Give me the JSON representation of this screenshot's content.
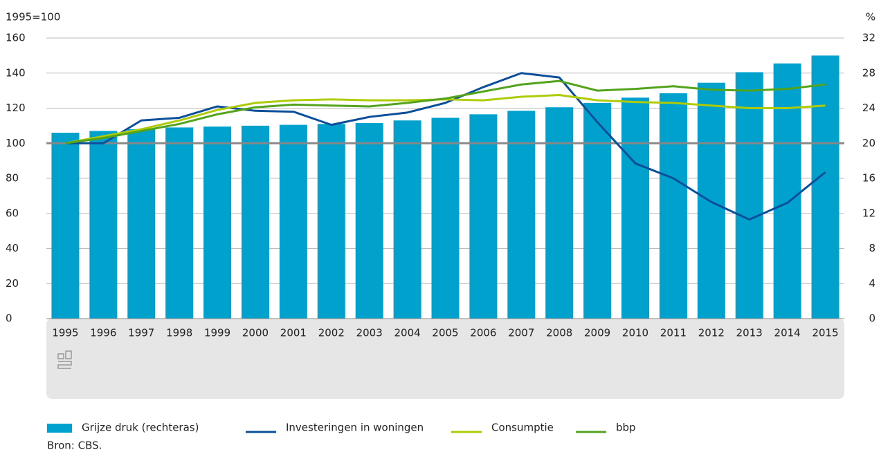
{
  "chart_data": {
    "type": "bar_line",
    "ylabel": "1995=100",
    "y2label": "%",
    "categories": [
      "1995",
      "1996",
      "1997",
      "1998",
      "1999",
      "2000",
      "2001",
      "2002",
      "2003",
      "2004",
      "2005",
      "2006",
      "2007",
      "2008",
      "2009",
      "2010",
      "2011",
      "2012",
      "2013",
      "2014",
      "2015"
    ],
    "series": [
      {
        "name": "Grijze druk (rechteras)",
        "type": "bar",
        "axis": "y2",
        "color": "#00a1cd",
        "values": [
          21.2,
          21.4,
          21.6,
          21.8,
          21.9,
          22.0,
          22.1,
          22.2,
          22.3,
          22.6,
          22.9,
          23.3,
          23.7,
          24.1,
          24.6,
          25.2,
          25.7,
          26.9,
          28.1,
          29.1,
          30.0
        ]
      },
      {
        "name": "Investeringen in woningen",
        "type": "line",
        "color": "#0b4e9a",
        "values": [
          100,
          100,
          113,
          114.5,
          121,
          118.5,
          118,
          110.5,
          115,
          117.5,
          123,
          132,
          140,
          137.5,
          112,
          88.5,
          80,
          66.5,
          56.5,
          66,
          83.5
        ]
      },
      {
        "name": "Consumptie",
        "type": "line",
        "color": "#afcb05",
        "values": [
          100,
          104,
          108,
          113,
          119,
          123,
          124.5,
          125,
          124.5,
          124.5,
          125,
          124.5,
          126.5,
          127.5,
          124.5,
          123.5,
          123,
          121.5,
          120,
          120,
          121.5
        ]
      },
      {
        "name": "bbp",
        "type": "line",
        "color": "#53a31d",
        "values": [
          100,
          103,
          107,
          111,
          116.5,
          120.5,
          122,
          121.5,
          121,
          123,
          125.5,
          129.5,
          133.5,
          135.5,
          130,
          131,
          132.5,
          130.5,
          130,
          131,
          133.5
        ]
      }
    ],
    "ylim": [
      0,
      160
    ],
    "yticks": [
      0,
      20,
      40,
      60,
      80,
      100,
      120,
      140,
      160
    ],
    "y2lim": [
      0,
      32
    ],
    "y2ticks": [
      0,
      4,
      8,
      12,
      16,
      20,
      24,
      28,
      32
    ],
    "reference_line": 100,
    "grid": true,
    "source": "Bron: CBS."
  }
}
